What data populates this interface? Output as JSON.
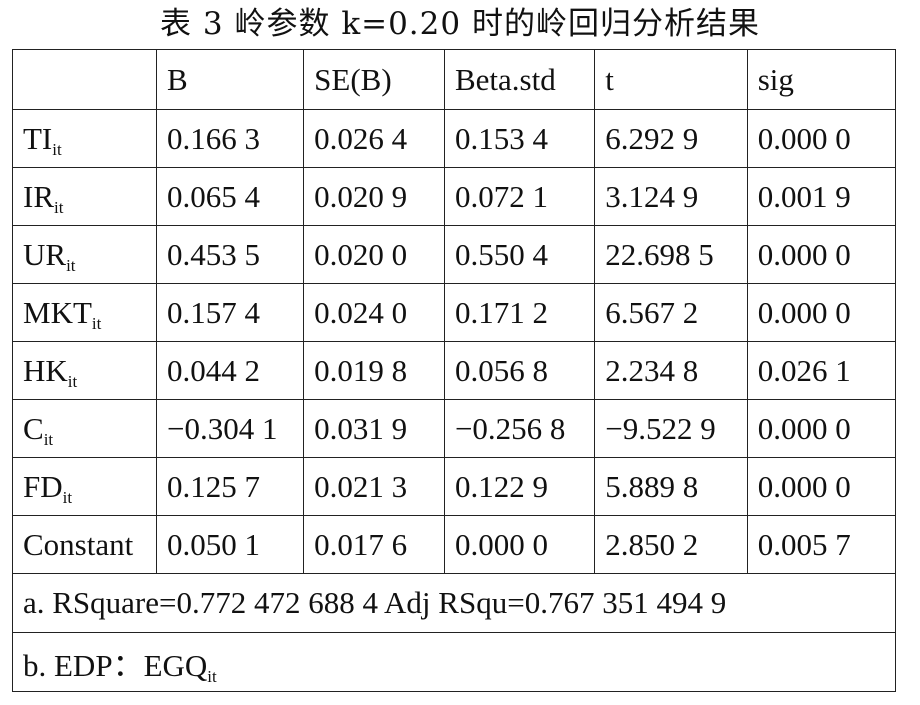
{
  "title": "表 3   岭参数 k=0.20 时的岭回归分析结果",
  "table": {
    "headers": [
      "",
      "B",
      "SE(B)",
      "Beta.std",
      "t",
      "sig"
    ],
    "rows": [
      {
        "var": "TI",
        "sub": "it",
        "B": "0.166 3",
        "SE": "0.026 4",
        "Beta": "0.153 4",
        "t": "6.292 9",
        "sig": "0.000 0"
      },
      {
        "var": "IR",
        "sub": "it",
        "B": "0.065 4",
        "SE": "0.020 9",
        "Beta": "0.072 1",
        "t": "3.124 9",
        "sig": "0.001 9"
      },
      {
        "var": "UR",
        "sub": "it",
        "B": "0.453 5",
        "SE": "0.020 0",
        "Beta": "0.550 4",
        "t": "22.698 5",
        "sig": "0.000 0"
      },
      {
        "var": "MKT",
        "sub": "it",
        "B": "0.157 4",
        "SE": "0.024 0",
        "Beta": "0.171 2",
        "t": "6.567 2",
        "sig": "0.000 0"
      },
      {
        "var": "HK",
        "sub": "it",
        "B": "0.044 2",
        "SE": "0.019 8",
        "Beta": "0.056 8",
        "t": "2.234 8",
        "sig": "0.026 1"
      },
      {
        "var": "C",
        "sub": "it",
        "B": "−0.304 1",
        "SE": "0.031 9",
        "Beta": "−0.256 8",
        "t": "−9.522 9",
        "sig": "0.000 0"
      },
      {
        "var": "FD",
        "sub": "it",
        "B": "0.125 7",
        "SE": "0.021 3",
        "Beta": "0.122 9",
        "t": "5.889 8",
        "sig": "0.000 0"
      },
      {
        "var": "Constant",
        "sub": "",
        "B": "0.050 1",
        "SE": "0.017 6",
        "Beta": "0.000 0",
        "t": "2.850 2",
        "sig": "0.005 7"
      }
    ],
    "note_a": "a. RSquare=0.772 472 688 4   Adj RSqu=0.767 351 494 9",
    "note_b": {
      "text": "b. EDP：EGQ",
      "sub": "it"
    }
  }
}
